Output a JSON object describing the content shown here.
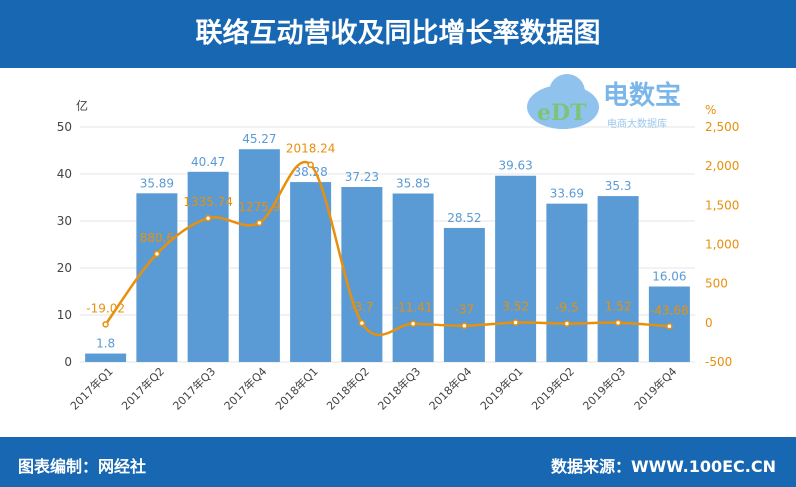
{
  "header": {
    "title": "联络互动营收及同比增长率数据图"
  },
  "footer": {
    "editor": "图表编制：网经社",
    "source": "数据来源：WWW.100EC.CN"
  },
  "logo": {
    "text": "电数宝",
    "sub": "电商大数据库",
    "mark": "eDT"
  },
  "chart_data": {
    "type": "bar+line",
    "categories": [
      "2017年Q1",
      "2017年Q2",
      "2017年Q3",
      "2017年Q4",
      "2018年Q1",
      "2018年Q2",
      "2018年Q3",
      "2018年Q4",
      "2019年Q1",
      "2019年Q2",
      "2019年Q3",
      "2019年Q4"
    ],
    "series": [
      {
        "type": "bar",
        "axis": "left",
        "color": "#5b9bd5",
        "values": [
          1.8,
          35.89,
          40.47,
          45.27,
          38.28,
          37.23,
          35.85,
          28.52,
          39.63,
          33.69,
          35.3,
          16.06
        ]
      },
      {
        "type": "line",
        "axis": "right",
        "color": "#e8900c",
        "values": [
          -19.02,
          880.6,
          1335.74,
          1275.9,
          2018.24,
          -3.7,
          -11.41,
          -37,
          3.52,
          -9.5,
          1.52,
          -43.68
        ]
      }
    ],
    "left_axis": {
      "label": "亿",
      "ylim": [
        0,
        50
      ],
      "ticks": [
        "0",
        "10",
        "20",
        "30",
        "40",
        "50"
      ]
    },
    "right_axis": {
      "label": "%",
      "ylim": [
        -500,
        2500
      ],
      "ticks": [
        "-500",
        "0",
        "500",
        "1,000",
        "1,500",
        "2,000",
        "2,500"
      ]
    },
    "grid": true
  }
}
